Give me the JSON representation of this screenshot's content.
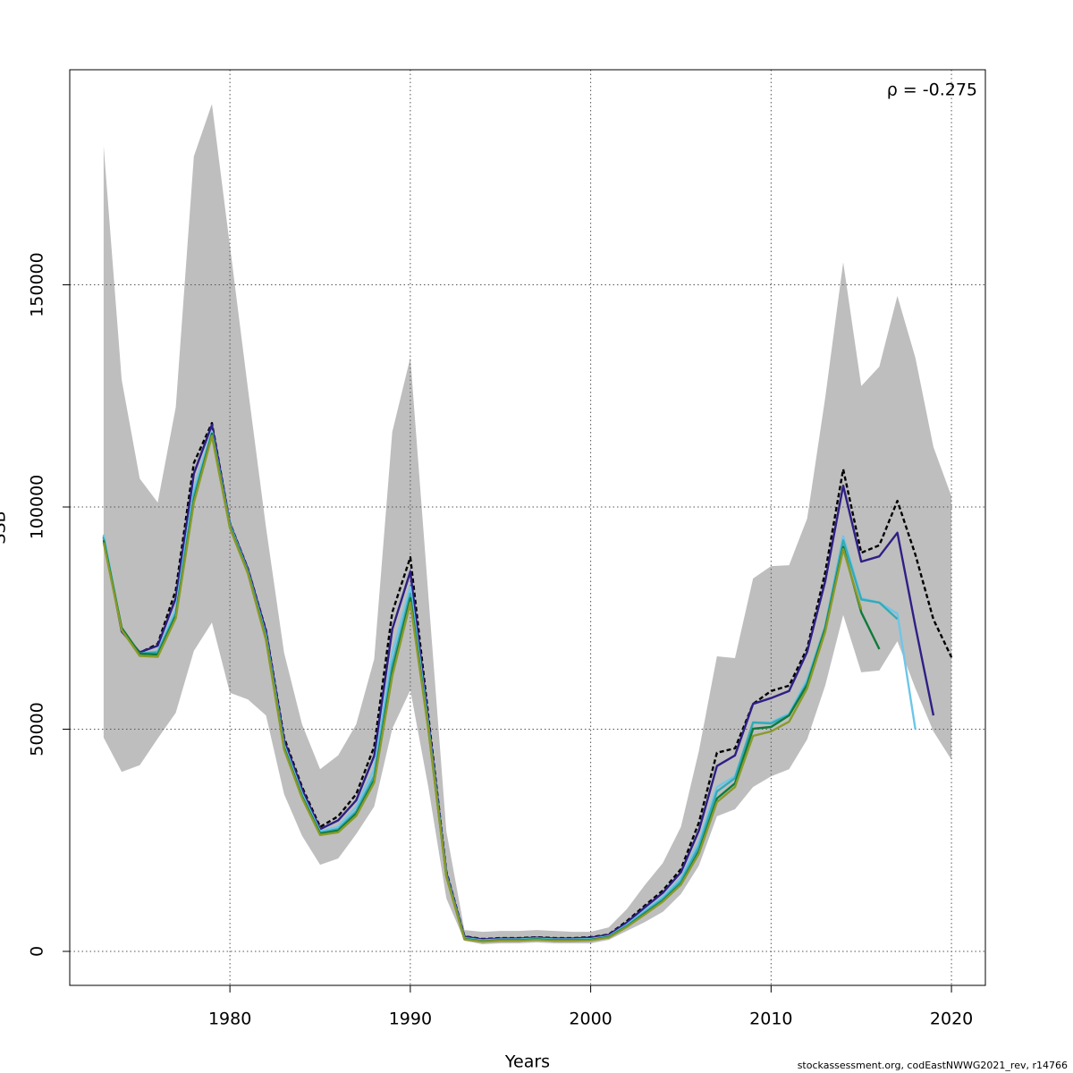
{
  "chart_data": {
    "type": "line",
    "xlabel": "Years",
    "ylabel": "SSB",
    "annotation": "ρ = -0.275",
    "footnote": "stockassessment.org, codEastNWWG2021_rev, r14766",
    "xlim": [
      1971.12,
      2021.88
    ],
    "ylim": [
      -7650,
      198400
    ],
    "xticks": [
      1980,
      1990,
      2000,
      2010,
      2020
    ],
    "yticks": [
      0,
      50000,
      100000,
      150000
    ],
    "grid": true,
    "x": [
      1973,
      1974,
      1975,
      1976,
      1977,
      1978,
      1979,
      1980,
      1981,
      1982,
      1983,
      1984,
      1985,
      1986,
      1987,
      1988,
      1989,
      1990,
      1991,
      1992,
      1993,
      1994,
      1995,
      1996,
      1997,
      1998,
      1999,
      2000,
      2001,
      2002,
      2003,
      2004,
      2005,
      2006,
      2007,
      2008,
      2009,
      2010,
      2011,
      2012,
      2013,
      2014,
      2015,
      2016,
      2017,
      2018,
      2019,
      2020
    ],
    "band": {
      "color": "#bebebe",
      "upper": [
        181300,
        128600,
        106400,
        101000,
        122500,
        178900,
        190700,
        158800,
        126600,
        95400,
        67200,
        51100,
        41000,
        44100,
        51100,
        65800,
        116900,
        133600,
        80300,
        27000,
        4800,
        4400,
        4600,
        4600,
        4800,
        4600,
        4400,
        4400,
        5400,
        9500,
        14900,
        19900,
        28000,
        45100,
        66400,
        66000,
        83900,
        86700,
        86900,
        97400,
        124600,
        155100,
        127200,
        131600,
        147500,
        133600,
        113500,
        102400
      ],
      "lower": [
        48100,
        40400,
        41900,
        47900,
        53700,
        67600,
        74000,
        58200,
        56700,
        53100,
        35400,
        26000,
        19500,
        20900,
        26400,
        32600,
        50100,
        58800,
        37000,
        11900,
        2400,
        1600,
        1800,
        1800,
        2000,
        1800,
        1800,
        1800,
        2600,
        4600,
        6600,
        8900,
        12900,
        19300,
        30400,
        32000,
        37000,
        39400,
        41000,
        47700,
        59800,
        75700,
        62800,
        63200,
        69800,
        59200,
        49500,
        43100
      ]
    },
    "series": [
      {
        "color": "#000000",
        "dashed": true,
        "values": [
          93400,
          72200,
          67200,
          69200,
          81300,
          109900,
          118900,
          96400,
          86100,
          72200,
          48100,
          37000,
          28000,
          30400,
          35400,
          46100,
          76300,
          88700,
          53100,
          17900,
          3400,
          2800,
          3000,
          3000,
          3200,
          3000,
          3000,
          3200,
          3800,
          6800,
          10300,
          13700,
          18500,
          29000,
          44700,
          45700,
          55700,
          58600,
          59800,
          68200,
          85300,
          108500,
          89700,
          91400,
          101400,
          89300,
          74700,
          66200
        ]
      },
      {
        "color": "#2e1f85",
        "values": [
          93000,
          72000,
          67300,
          68800,
          79500,
          107500,
          118500,
          96300,
          86000,
          72000,
          47500,
          36500,
          27500,
          29500,
          34000,
          44000,
          72500,
          85500,
          52000,
          17600,
          3300,
          2700,
          2900,
          2900,
          3100,
          2900,
          2900,
          3100,
          3700,
          6500,
          9900,
          13200,
          17800,
          27200,
          41700,
          44100,
          55700,
          57000,
          58600,
          67400,
          83300,
          104800,
          87700,
          88900,
          94200,
          73200,
          53100,
          null
        ]
      },
      {
        "color": "#6ec6e8",
        "values": [
          93800,
          72500,
          67000,
          67500,
          77000,
          104000,
          117000,
          96000,
          85500,
          71000,
          46500,
          35500,
          27000,
          28000,
          32500,
          41000,
          67000,
          82000,
          51000,
          17200,
          3000,
          2500,
          2700,
          2700,
          2900,
          2700,
          2700,
          2800,
          3400,
          6000,
          9200,
          12300,
          16500,
          24500,
          37000,
          39400,
          51500,
          51500,
          53500,
          61200,
          73200,
          93400,
          79500,
          78500,
          76000,
          50000,
          null,
          null
        ]
      },
      {
        "color": "#35aab5",
        "values": [
          93000,
          72400,
          67000,
          67300,
          76000,
          102500,
          116500,
          95800,
          85300,
          70500,
          46000,
          35000,
          26700,
          27500,
          31500,
          39500,
          64500,
          80500,
          50500,
          17000,
          2900,
          2400,
          2600,
          2600,
          2800,
          2600,
          2600,
          2700,
          3300,
          5800,
          8800,
          11800,
          15800,
          23500,
          36000,
          39000,
          51500,
          51300,
          53200,
          60500,
          73000,
          92500,
          79200,
          78500,
          74800,
          null,
          null,
          null
        ]
      },
      {
        "color": "#117a3a",
        "values": [
          92500,
          72800,
          67000,
          66800,
          75500,
          101500,
          116500,
          95500,
          85200,
          70300,
          45800,
          34800,
          26500,
          27200,
          31000,
          38500,
          63000,
          79500,
          50200,
          16900,
          2800,
          2300,
          2500,
          2500,
          2700,
          2500,
          2500,
          2600,
          3200,
          5600,
          8500,
          11400,
          15200,
          22500,
          34400,
          37800,
          50100,
          50500,
          53100,
          60000,
          72600,
          91000,
          76300,
          68000,
          null,
          null,
          null,
          null
        ]
      },
      {
        "color": "#8a9a2a",
        "values": [
          92000,
          72300,
          66500,
          66300,
          75000,
          101000,
          116000,
          95300,
          85000,
          70000,
          45500,
          34500,
          26200,
          26800,
          30500,
          38000,
          62000,
          78500,
          50000,
          16800,
          2700,
          2200,
          2400,
          2400,
          2600,
          2400,
          2400,
          2500,
          3100,
          5500,
          8300,
          11200,
          15000,
          22000,
          33600,
          37000,
          48500,
          49500,
          51700,
          59200,
          72000,
          90500,
          77000,
          null,
          null,
          null,
          null,
          null
        ]
      }
    ]
  }
}
